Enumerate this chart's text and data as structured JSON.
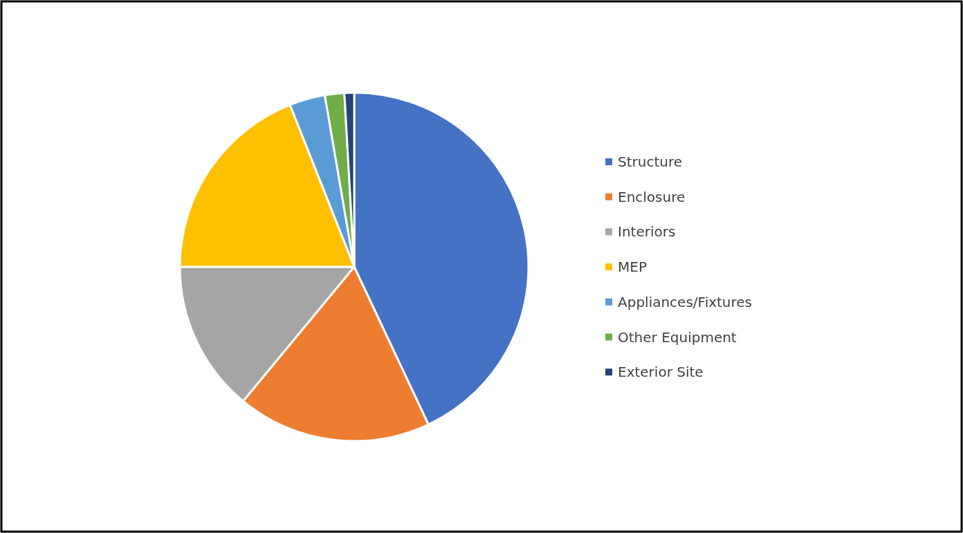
{
  "chart_data": {
    "type": "pie",
    "categories": [
      "Structure",
      "Enclosure",
      "Interiors",
      "MEP",
      "Appliances/Fixtures",
      "Other Equipment",
      "Exterior Site"
    ],
    "values": [
      43,
      18,
      14,
      19,
      3.3,
      1.8,
      0.9
    ],
    "colors": [
      "#4472c4",
      "#ed7d31",
      "#a5a5a5",
      "#ffc000",
      "#5b9bd5",
      "#70ad47",
      "#264478"
    ],
    "legend": "right"
  }
}
